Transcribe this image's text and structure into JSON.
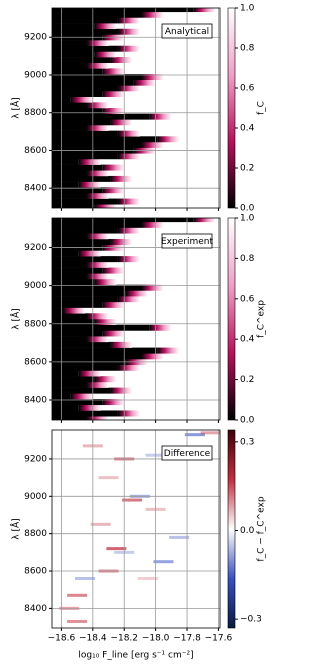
{
  "chart_data": [
    {
      "type": "heatmap",
      "annotation": "Analytical",
      "ylabel": "λ [Å]",
      "clabel": "f_C",
      "xlim": [
        -18.66,
        -17.59
      ],
      "ylim": [
        8295,
        9355
      ],
      "xticks": [
        -18.6,
        -18.4,
        -18.2,
        -18.0,
        -17.8,
        -17.6
      ],
      "yticks": [
        8400,
        8600,
        8800,
        9000,
        9200
      ],
      "y": [
        8300,
        8330,
        8360,
        8390,
        8420,
        8450,
        8480,
        8510,
        8540,
        8570,
        8600,
        8630,
        8660,
        8690,
        8720,
        8750,
        8780,
        8810,
        8840,
        8870,
        8900,
        8930,
        8960,
        8990,
        9020,
        9050,
        9080,
        9110,
        9140,
        9170,
        9200,
        9230,
        9260,
        9290,
        9320,
        9350
      ],
      "values": [
        -18.25,
        -18.1,
        -18.3,
        -18.2,
        -18.35,
        -18.15,
        -18.3,
        -18.2,
        -18.35,
        -18.1,
        -18.0,
        -17.95,
        -17.85,
        -18.1,
        -18.3,
        -18.15,
        -17.9,
        -18.2,
        -18.3,
        -18.4,
        -18.2,
        -18.1,
        -18.0,
        -17.95,
        -18.2,
        -18.3,
        -18.15,
        -18.25,
        -18.1,
        -18.3,
        -18.2,
        -18.1,
        -18.25,
        -18.1,
        -17.95,
        -17.62
      ],
      "colormap": [
        "#000000",
        "#b5125e",
        "#f0a0c8",
        "#ffffff"
      ],
      "clim": [
        0,
        1
      ],
      "cticks": [
        {
          "value": 0,
          "label": "0.0"
        },
        0.2,
        0.4,
        0.6,
        0.8,
        {
          "value": 1,
          "label": "1.0"
        }
      ],
      "grid": true
    },
    {
      "type": "heatmap",
      "annotation": "Experiment",
      "ylabel": "λ [Å]",
      "clabel": "f_C^exp",
      "xlim": [
        -18.66,
        -17.59
      ],
      "ylim": [
        8295,
        9355
      ],
      "xticks": [
        -18.6,
        -18.4,
        -18.2,
        -18.0,
        -17.8,
        -17.6
      ],
      "yticks": [
        8400,
        8600,
        8800,
        9000,
        9200
      ],
      "y": [
        8300,
        8330,
        8360,
        8390,
        8420,
        8450,
        8480,
        8510,
        8540,
        8570,
        8600,
        8630,
        8660,
        8690,
        8720,
        8750,
        8780,
        8810,
        8840,
        8870,
        8900,
        8930,
        8960,
        8990,
        9020,
        9050,
        9080,
        9110,
        9140,
        9170,
        9200,
        9230,
        9260,
        9290,
        9320,
        9350
      ],
      "values": [
        -18.3,
        -18.1,
        -18.35,
        -18.2,
        -18.4,
        -18.15,
        -18.3,
        -18.25,
        -18.35,
        -18.1,
        -18.05,
        -17.95,
        -17.85,
        -18.15,
        -18.3,
        -18.2,
        -17.9,
        -18.25,
        -18.3,
        -18.45,
        -18.2,
        -18.1,
        -18.05,
        -17.95,
        -18.25,
        -18.3,
        -18.2,
        -18.3,
        -18.1,
        -18.35,
        -18.2,
        -18.15,
        -18.3,
        -18.1,
        -17.95,
        -17.62
      ],
      "colormap": [
        "#000000",
        "#b5125e",
        "#f0a0c8",
        "#ffffff"
      ],
      "clim": [
        0,
        1
      ],
      "cticks": [
        {
          "value": 0,
          "label": "0.0"
        },
        0.2,
        0.4,
        0.6,
        0.8,
        {
          "value": 1,
          "label": "1.0"
        }
      ],
      "grid": true
    },
    {
      "type": "heatmap",
      "annotation": "Difference",
      "ylabel": "λ [Å]",
      "clabel": "f_C − f_C^exp",
      "xlabel": "log₁₀ F_line [erg s⁻¹ cm⁻²]",
      "xlim": [
        -18.66,
        -17.59
      ],
      "ylim": [
        8295,
        9355
      ],
      "xticks": [
        {
          "value": -18.6,
          "label": "−18.6"
        },
        {
          "value": -18.4,
          "label": "−18.4"
        },
        {
          "value": -18.2,
          "label": "−18.2"
        },
        {
          "value": -18.0,
          "label": "−18.0"
        },
        {
          "value": -17.8,
          "label": "−17.8"
        },
        {
          "value": -17.6,
          "label": "−17.6"
        }
      ],
      "yticks": [
        8400,
        8600,
        8800,
        9000,
        9200
      ],
      "x": [
        -18.55,
        -18.5,
        -18.45,
        -18.3,
        -18.25,
        -18.2,
        -18.35,
        -18.15,
        -18.1,
        -18.3,
        -18.2,
        -18.0,
        -17.95,
        -17.85,
        -18.0,
        -17.75,
        -17.65,
        -18.4,
        -18.05,
        -18.5
      ],
      "y": [
        8400,
        8470,
        8560,
        8600,
        8720,
        8700,
        8850,
        8980,
        9000,
        9100,
        9200,
        9220,
        8650,
        8780,
        8930,
        9330,
        9340,
        9270,
        8560,
        8330
      ],
      "values": [
        0.15,
        0.2,
        -0.12,
        0.18,
        0.25,
        -0.1,
        0.12,
        0.22,
        -0.15,
        0.1,
        0.2,
        -0.1,
        -0.18,
        -0.12,
        0.1,
        -0.2,
        0.15,
        0.12,
        0.08,
        0.18
      ],
      "colormap": [
        "#0a1a40",
        "#3a50c0",
        "#ffffff",
        "#c03040",
        "#40000a"
      ],
      "clim": [
        -0.33,
        0.34
      ],
      "cticks": [
        {
          "value": -0.3,
          "label": "−0.3"
        },
        {
          "value": 0,
          "label": "0.0"
        },
        0.3
      ],
      "grid": true
    }
  ]
}
